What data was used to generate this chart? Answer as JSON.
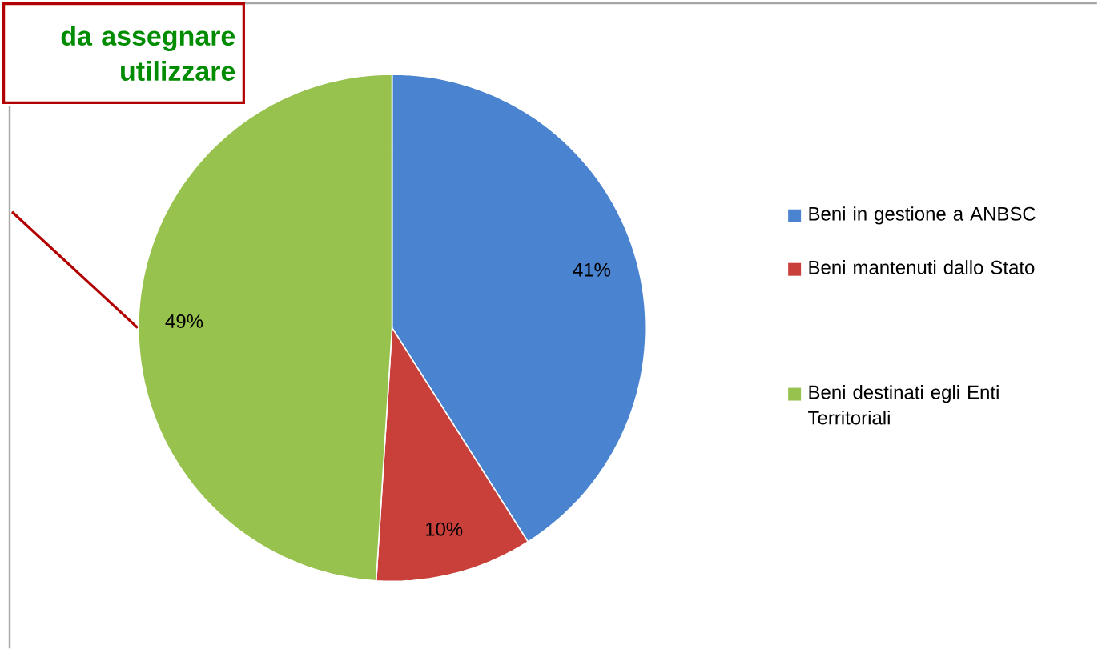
{
  "chart_data": {
    "type": "pie",
    "categories": [
      "Beni in gestione a ANBSC",
      "Beni mantenuti dallo Stato",
      "Beni destinati egli Enti Territoriali"
    ],
    "values": [
      41,
      10,
      49
    ],
    "colors": [
      "#4a83d0",
      "#c9403a",
      "#98c24e"
    ],
    "value_labels": [
      "41%",
      "10%",
      "49%"
    ],
    "legend": "right",
    "annotations": [
      "da assegnare utilizzare"
    ]
  }
}
